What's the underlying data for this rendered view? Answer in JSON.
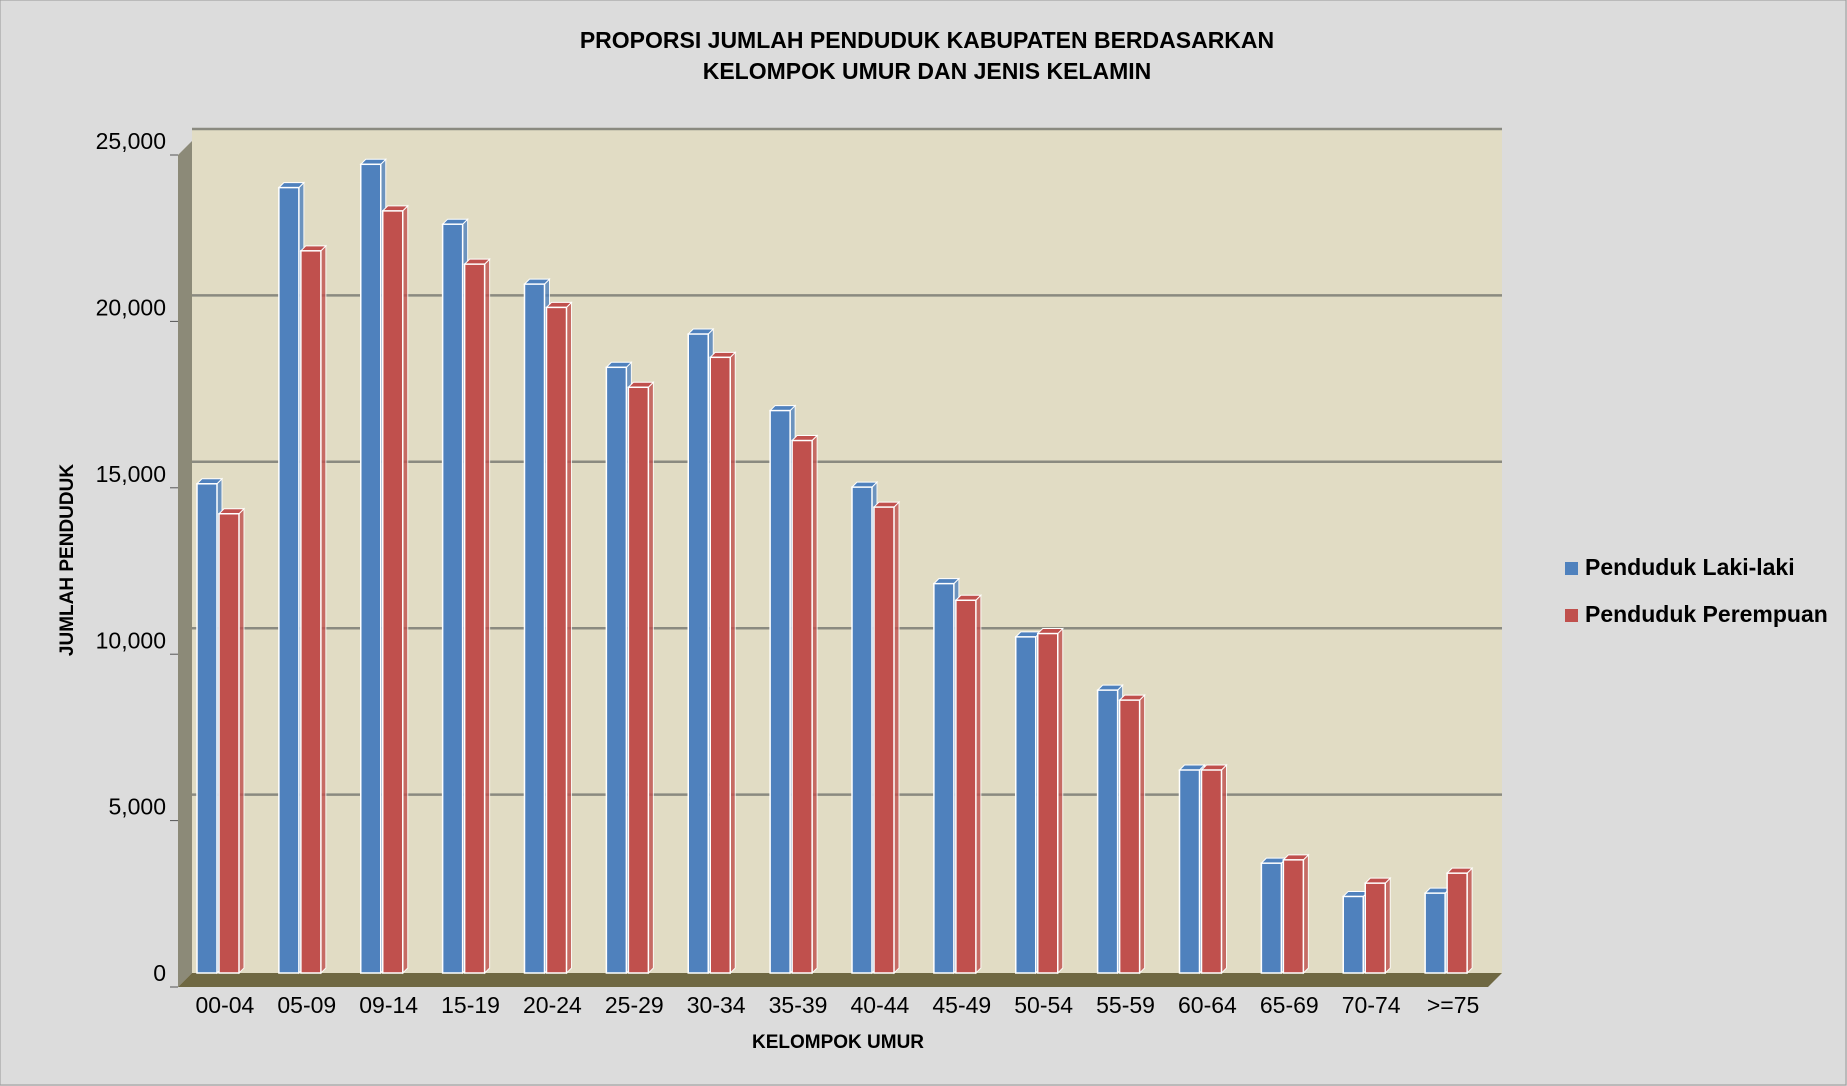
{
  "chart_data": {
    "type": "bar3d",
    "title": [
      "PROPORSI JUMLAH PENDUDUK KABUPATEN BERDASARKAN",
      "KELOMPOK UMUR DAN JENIS KELAMIN"
    ],
    "x_label": "KELOMPOK UMUR",
    "y_label": "JUMLAH PENDUDUK",
    "categories": [
      "00-04",
      "05-09",
      "09-14",
      "15-19",
      "20-24",
      "25-29",
      "30-34",
      "35-39",
      "40-44",
      "45-49",
      "50-54",
      "55-59",
      "60-64",
      "65-69",
      "70-74",
      ">=75"
    ],
    "series": [
      {
        "name": "Penduduk Laki-laki",
        "color": "#4f81bd",
        "values": [
          14700,
          23600,
          24300,
          22500,
          20700,
          18200,
          19200,
          16900,
          14600,
          11700,
          10100,
          8500,
          6100,
          3300,
          2300,
          2400
        ]
      },
      {
        "name": "Penduduk Perempuan",
        "color": "#c0504d",
        "values": [
          13800,
          21700,
          22900,
          21300,
          20000,
          17600,
          18500,
          16000,
          14000,
          11200,
          10200,
          8200,
          6100,
          3400,
          2700,
          3000
        ]
      }
    ],
    "ylim": [
      0,
      25000
    ],
    "yticks": [
      0,
      {
        "value": 5000,
        "label": "5,000"
      },
      {
        "value": 10000,
        "label": "10,000"
      },
      {
        "value": 15000,
        "label": "15,000"
      },
      {
        "value": 20000,
        "label": "20,000"
      },
      {
        "value": 25000,
        "label": "25,000"
      }
    ],
    "grid": true,
    "legend": "right"
  }
}
